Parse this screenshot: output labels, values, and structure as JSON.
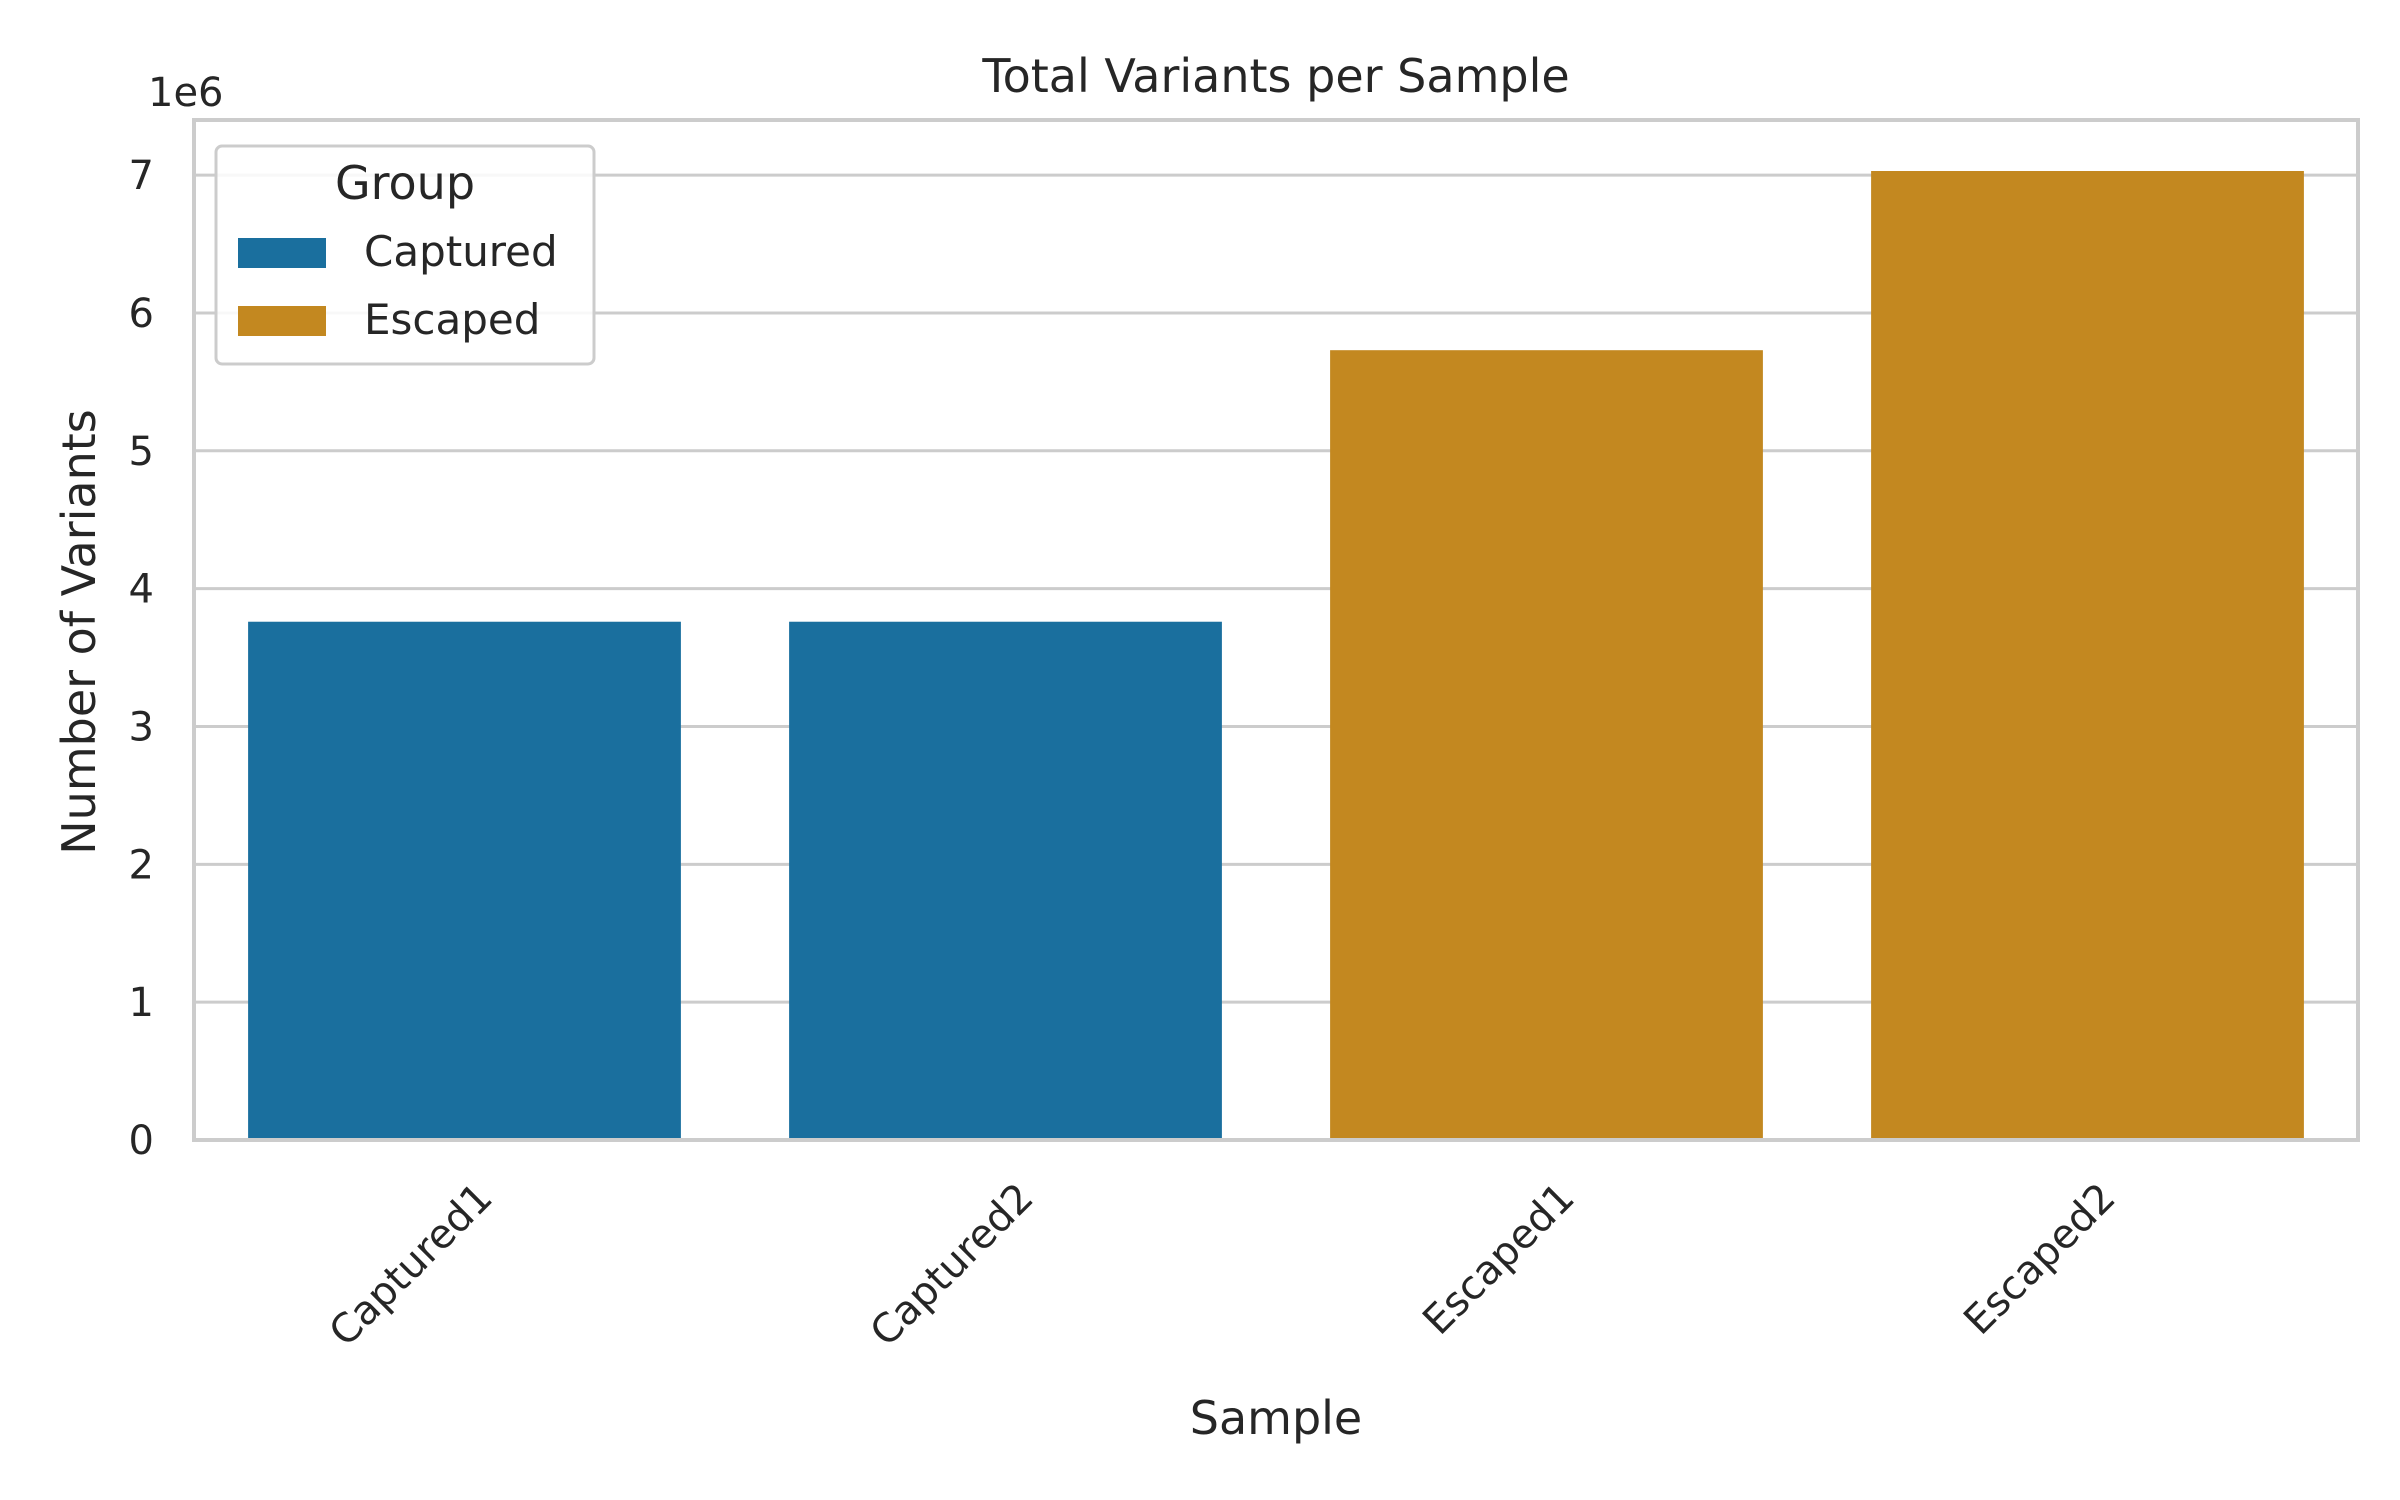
{
  "chart_data": {
    "type": "bar",
    "title": "Total Variants per Sample",
    "xlabel": "Sample",
    "ylabel": "Number of Variants",
    "y_offset_label": "1e6",
    "ylim": [
      0,
      7.4
    ],
    "yticks": [
      0,
      1,
      2,
      3,
      4,
      5,
      6,
      7
    ],
    "grid": true,
    "legend": {
      "title": "Group",
      "placement": "top-left",
      "entries": [
        {
          "label": "Captured",
          "color": "#1a6f9e"
        },
        {
          "label": "Escaped",
          "color": "#c38820"
        }
      ]
    },
    "categories": [
      "Captured1",
      "Captured2",
      "Escaped1",
      "Escaped2"
    ],
    "groups": [
      "Captured",
      "Captured",
      "Escaped",
      "Escaped"
    ],
    "values": [
      3.76,
      3.76,
      5.73,
      7.03
    ]
  }
}
